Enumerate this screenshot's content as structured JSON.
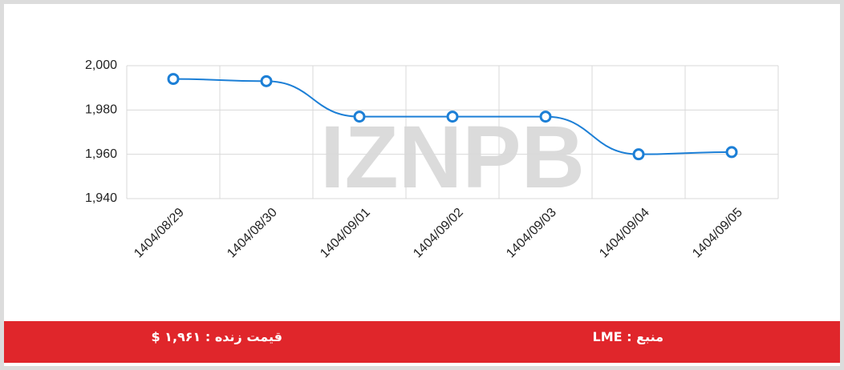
{
  "chart_data": {
    "type": "line",
    "watermark": "IZNPB",
    "categories": [
      "1404/08/29",
      "1404/08/30",
      "1404/09/01",
      "1404/09/02",
      "1404/09/03",
      "1404/09/04",
      "1404/09/05"
    ],
    "series": [
      {
        "color": "#1c7fd6",
        "values": [
          1994,
          1993,
          1977,
          1977,
          1977,
          1960,
          1961
        ]
      }
    ],
    "ylim": [
      1940,
      2000
    ],
    "yticks": [
      {
        "value": 1940,
        "label": "1,940"
      },
      {
        "value": 1960,
        "label": "1,960"
      },
      {
        "value": 1980,
        "label": "1,980"
      },
      {
        "value": 2000,
        "label": "2,000"
      }
    ],
    "grid": true
  },
  "footer": {
    "live_price": "قیمت زنده : ۱,۹۶۱ $",
    "source": "منبع : LME"
  }
}
